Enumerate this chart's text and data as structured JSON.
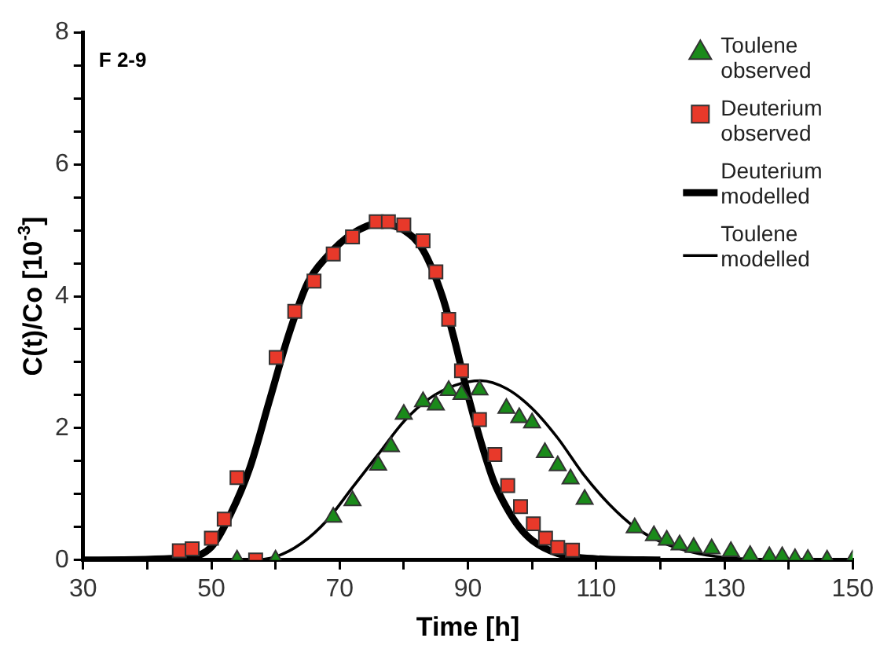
{
  "chart_data": {
    "type": "scatter",
    "xlabel": "Time [h]",
    "ylabel": "C(t)/Co [10$^{-3}$]",
    "annotations": [
      "F 2-9"
    ],
    "xlim": [
      30,
      150
    ],
    "xticks": [
      30,
      {
        "value": 40,
        "label": null
      },
      50,
      {
        "value": 60,
        "label": null
      },
      70,
      {
        "value": 80,
        "label": null
      },
      90,
      {
        "value": 100,
        "label": null
      },
      110,
      {
        "value": 120,
        "label": null
      },
      130,
      {
        "value": 140,
        "label": null
      },
      150
    ],
    "ylim": [
      0,
      8
    ],
    "yticks": [
      0,
      {
        "value": 0.5,
        "label": null
      },
      {
        "value": 1,
        "label": null
      },
      {
        "value": 1.5,
        "label": null
      },
      2,
      {
        "value": 2.5,
        "label": null
      },
      {
        "value": 3,
        "label": null
      },
      {
        "value": 3.5,
        "label": null
      },
      4,
      {
        "value": 4.5,
        "label": null
      },
      {
        "value": 5,
        "label": null
      },
      {
        "value": 5.5,
        "label": null
      },
      6,
      {
        "value": 6.5,
        "label": null
      },
      {
        "value": 7,
        "label": null
      },
      {
        "value": 7.5,
        "label": null
      },
      8
    ],
    "grid": false,
    "legend": "top right",
    "series": [
      {
        "name": "Toulene observed",
        "type": "scatter",
        "marker": "triangle",
        "color": "#1a8a1a",
        "x": [
          54,
          60,
          69,
          72,
          76,
          78,
          80,
          83,
          85,
          87,
          89,
          91.8,
          96,
          98,
          100,
          102,
          104,
          106,
          108.2,
          116,
          119,
          121,
          123,
          125.2,
          128,
          131,
          134,
          137,
          139,
          141,
          143,
          146,
          150
        ],
        "values": [
          0,
          0,
          0.65,
          0.9,
          1.44,
          1.72,
          2.21,
          2.4,
          2.35,
          2.57,
          2.51,
          2.58,
          2.3,
          2.16,
          2.08,
          1.63,
          1.43,
          1.23,
          0.92,
          0.49,
          0.37,
          0.3,
          0.23,
          0.19,
          0.17,
          0.13,
          0.07,
          0.05,
          0.05,
          0.02,
          0.01,
          0,
          0
        ]
      },
      {
        "name": "Deuterium observed",
        "type": "scatter",
        "marker": "square",
        "color": "#e8392a",
        "x": [
          45,
          47,
          50,
          52,
          54,
          56.9,
          60.1,
          63,
          66,
          69,
          72,
          75.7,
          77.6,
          80,
          83,
          85,
          87,
          89,
          91.8,
          94.2,
          96.2,
          98.2,
          100.2,
          102.1,
          104,
          106.3
        ],
        "values": [
          0.14,
          0.17,
          0.33,
          0.62,
          1.25,
          0,
          3.07,
          3.77,
          4.23,
          4.64,
          4.9,
          5.13,
          5.13,
          5.08,
          4.84,
          4.37,
          3.65,
          2.87,
          2.13,
          1.6,
          1.13,
          0.81,
          0.55,
          0.33,
          0.19,
          0.15
        ]
      },
      {
        "name": "Deuterium modelled",
        "type": "line",
        "marker": "none",
        "line_style": "solid",
        "color": "#000000",
        "x": [
          30,
          45,
          50,
          53,
          56,
          59,
          62,
          65,
          68,
          72,
          76,
          80,
          83,
          86,
          88,
          90,
          92,
          94,
          96,
          98,
          100,
          104,
          110,
          120
        ],
        "values": [
          0,
          0.03,
          0.2,
          0.7,
          1.4,
          2.4,
          3.4,
          4.2,
          4.6,
          4.95,
          5.1,
          5,
          4.7,
          4,
          3.3,
          2.5,
          1.8,
          1.2,
          0.8,
          0.5,
          0.3,
          0.1,
          0.02,
          0
        ]
      },
      {
        "name": "Toulene modelled",
        "type": "line",
        "marker": "none",
        "line_style": "solid",
        "color": "#000000",
        "x": [
          30,
          56,
          60,
          64,
          68,
          72,
          76,
          80,
          84,
          88,
          92,
          96,
          100,
          104,
          108,
          112,
          116,
          120,
          125,
          130,
          135,
          140
        ],
        "values": [
          0,
          0,
          0.05,
          0.25,
          0.6,
          1.1,
          1.6,
          2.1,
          2.45,
          2.65,
          2.72,
          2.6,
          2.3,
          1.85,
          1.3,
          0.85,
          0.5,
          0.28,
          0.12,
          0.04,
          0.01,
          0
        ]
      }
    ]
  }
}
